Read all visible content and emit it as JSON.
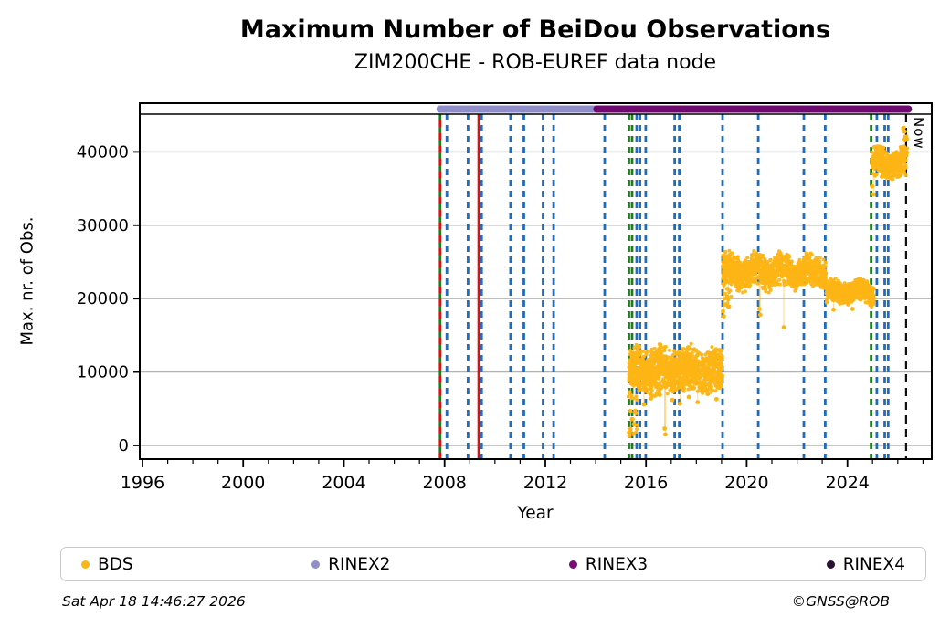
{
  "title": "Maximum Number of BeiDou Observations",
  "subtitle": "ZIM200CHE - ROB-EUREF data node",
  "now_label": "Now",
  "footer": {
    "timestamp": "Sat Apr 18 14:46:27 2026",
    "copyright": "©GNSS@ROB"
  },
  "legend": {
    "items": [
      {
        "label": "BDS",
        "color": "#fdb515"
      },
      {
        "label": "RINEX2",
        "color": "#8f8ec9"
      },
      {
        "label": "RINEX3",
        "color": "#7a0a7a"
      },
      {
        "label": "RINEX4",
        "color": "#2a1133"
      }
    ]
  },
  "colors": {
    "bds": "#fdb515",
    "rinex2_bar": "#8f8ec9",
    "rinex3_bar": "#6e096e",
    "event_blue": "#1b6ec2",
    "event_green": "#1e7e1e",
    "event_red": "#dc1010",
    "now_line": "#111111",
    "grid": "#b3b3b3",
    "frame": "#000000"
  },
  "chart_data": {
    "type": "scatter",
    "title": "Maximum Number of BeiDou Observations",
    "subtitle": "ZIM200CHE - ROB-EUREF data node",
    "xlabel": "Year",
    "ylabel": "Max. nr. of Obs.",
    "series_name": "BDS",
    "xlim": [
      1995.89,
      2027.35
    ],
    "ylim": [
      0,
      45000
    ],
    "grid": "horizontal",
    "x_ticks_major": [
      1996,
      2000,
      2004,
      2008,
      2012,
      2016,
      2020,
      2024
    ],
    "x_minor_step": 1,
    "y_ticks": [
      0,
      10000,
      20000,
      30000,
      40000
    ],
    "bands": [
      {
        "x0": 2015.3,
        "x1": 2015.66,
        "dist": "uni",
        "lo": 1200,
        "hi": 12800,
        "per_year": 95
      },
      {
        "x0": 2015.32,
        "x1": 2019.05,
        "dist": "tri",
        "center": 10500,
        "spread": 3100,
        "wobble": 500,
        "per_year": 300
      },
      {
        "x0": 2015.4,
        "x1": 2019.0,
        "dist": "tri",
        "center": 8200,
        "spread": 1500,
        "wobble": 300,
        "per_year": 45
      },
      {
        "x0": 2019.04,
        "x1": 2023.16,
        "dist": "tri",
        "center": 23700,
        "spread": 2450,
        "wobble": 600,
        "per_year": 300
      },
      {
        "x0": 2019.05,
        "x1": 2019.4,
        "dist": "tri",
        "center": 20800,
        "spread": 2600,
        "wobble": 0,
        "per_year": 45
      },
      {
        "x0": 2023.16,
        "x1": 2025.06,
        "dist": "tri",
        "center": 20900,
        "spread": 1700,
        "wobble": 400,
        "per_year": 300
      },
      {
        "x0": 2024.96,
        "x1": 2026.33,
        "dist": "tri",
        "center": 38500,
        "spread": 2300,
        "wobble": 500,
        "per_year": 290
      },
      {
        "x0": 2026.2,
        "x1": 2026.38,
        "dist": "uni",
        "lo": 38800,
        "hi": 43400,
        "per_year": 160
      }
    ],
    "outliers": [
      [
        2015.34,
        1300,
        0
      ],
      [
        2015.38,
        2250,
        0
      ],
      [
        2015.44,
        3600,
        0
      ],
      [
        2015.52,
        2900,
        0
      ],
      [
        2015.6,
        4400,
        0
      ],
      [
        2015.92,
        5600,
        10300
      ],
      [
        2016.2,
        6400,
        0
      ],
      [
        2016.55,
        6900,
        0
      ],
      [
        2016.74,
        2300,
        10300
      ],
      [
        2016.77,
        1500,
        10300
      ],
      [
        2017.05,
        6200,
        0
      ],
      [
        2017.35,
        5700,
        10300
      ],
      [
        2017.7,
        6600,
        0
      ],
      [
        2018.05,
        5900,
        10300
      ],
      [
        2018.45,
        7000,
        0
      ],
      [
        2018.8,
        6300,
        0
      ],
      [
        2019.06,
        18300,
        23500
      ],
      [
        2019.09,
        17600,
        23500
      ],
      [
        2019.13,
        19200,
        0
      ],
      [
        2019.2,
        20100,
        0
      ],
      [
        2019.28,
        18900,
        23500
      ],
      [
        2020.5,
        18600,
        23800
      ],
      [
        2020.54,
        17800,
        23800
      ],
      [
        2021.47,
        16100,
        23800
      ],
      [
        2023.45,
        18500,
        20900
      ],
      [
        2024.2,
        18600,
        0
      ],
      [
        2024.98,
        35300,
        0
      ],
      [
        2025.04,
        34200,
        38300
      ]
    ],
    "events": {
      "blue": [
        2008.09,
        2008.93,
        2009.47,
        2010.62,
        2011.15,
        2011.91,
        2012.33,
        2014.36,
        2015.63,
        2015.76,
        2015.99,
        2017.14,
        2017.32,
        2019.04,
        2020.46,
        2022.27,
        2023.12,
        2025.17,
        2025.48,
        2025.62
      ],
      "green": [
        2015.32,
        2015.45,
        2024.94
      ],
      "red_green": 2007.82,
      "red_solid": 2009.36,
      "now": 2026.33
    },
    "spans": {
      "rinex2": [
        2007.82,
        2014.25
      ],
      "rinex3": [
        2014.05,
        2026.42
      ]
    }
  }
}
